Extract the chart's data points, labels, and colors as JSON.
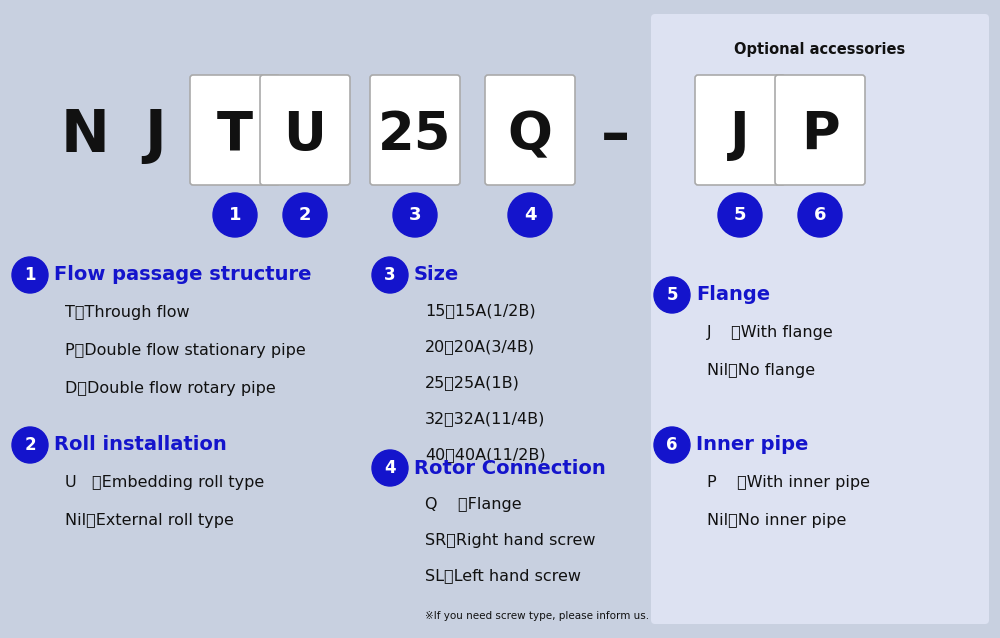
{
  "bg_color": "#c8d0e0",
  "optional_bg": "#dde2f2",
  "title_model": [
    "N",
    "J",
    "T",
    "U",
    "25",
    "Q",
    "–",
    "J",
    "P"
  ],
  "boxed_indices": [
    2,
    3,
    4,
    5,
    7,
    8
  ],
  "circle_labels": [
    "1",
    "2",
    "3",
    "4",
    "5",
    "6"
  ],
  "optional_label": "Optional accessories",
  "section1_title": "Flow passage structure",
  "section1_items": [
    "T：Through flow",
    "P：Double flow stationary pipe",
    "D：Double flow rotary pipe"
  ],
  "section2_title": "Roll installation",
  "section2_items": [
    "U   ：Embedding roll type",
    "Nil：External roll type"
  ],
  "section3_title": "Size",
  "section3_items": [
    "15：15A(1/2B)",
    "20：20A(3/4B)",
    "25：25A(1B)",
    "32：32A(11/4B)",
    "40：40A(11/2B)"
  ],
  "section4_title": "Rotor Connection",
  "section4_items": [
    "Q    ：Flange",
    "SR：Right hand screw",
    "SL：Left hand screw"
  ],
  "section4_note": "※If you need screw type, please inform us.",
  "section5_title": "Flange",
  "section5_items": [
    "J    ：With flange",
    "Nil：No flange"
  ],
  "section6_title": "Inner pipe",
  "section6_items": [
    "P    ：With inner pipe",
    "Nil：No inner pipe"
  ],
  "blue_color": "#1414cc",
  "text_black": "#111111",
  "white": "#ffffff",
  "box_edge": "#aaaaaa"
}
